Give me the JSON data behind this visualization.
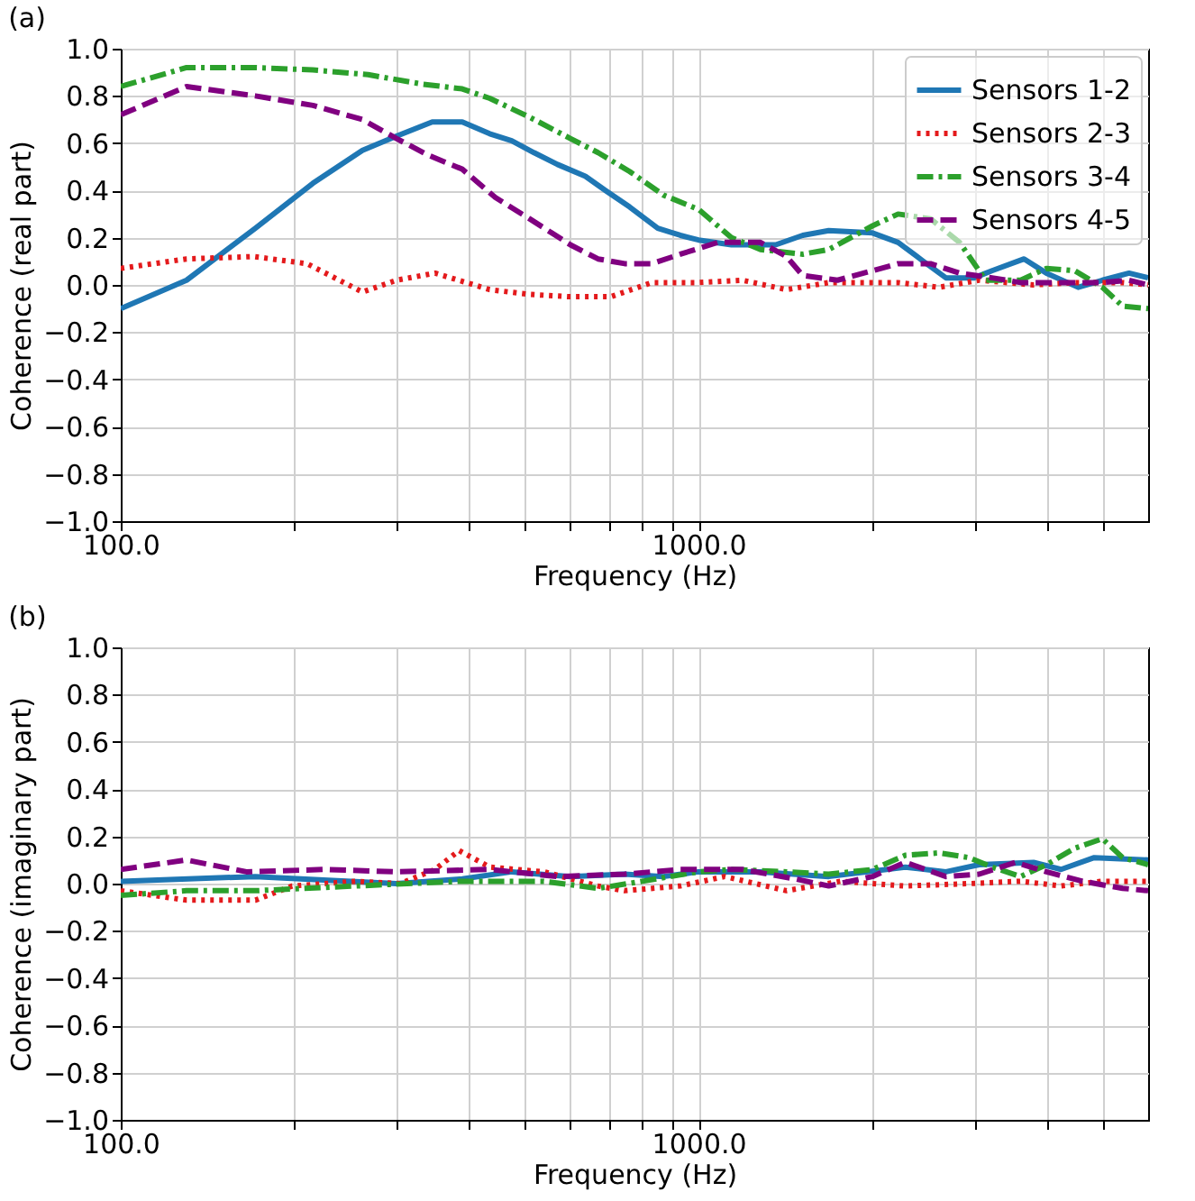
{
  "chart_data": [
    {
      "type": "line",
      "title": "(a)",
      "xlabel": "Frequency (Hz)",
      "ylabel": "Coherence (real part)",
      "log": "x",
      "grid": true,
      "legend": "top right",
      "xlim": [
        100,
        6000
      ],
      "ylim": [
        -1,
        1
      ],
      "xticks": [
        {
          "value": 100,
          "label": "100.0"
        },
        {
          "value": 200,
          "label": null
        },
        {
          "value": 300,
          "label": null
        },
        {
          "value": 400,
          "label": null
        },
        {
          "value": 500,
          "label": null
        },
        {
          "value": 600,
          "label": null
        },
        {
          "value": 700,
          "label": null
        },
        {
          "value": 800,
          "label": null
        },
        {
          "value": 900,
          "label": null
        },
        {
          "value": 1000,
          "label": "1000.0"
        },
        {
          "value": 2000,
          "label": null
        },
        {
          "value": 3000,
          "label": null
        },
        {
          "value": 4000,
          "label": null
        },
        {
          "value": 5000,
          "label": null
        }
      ],
      "yticks": [
        {
          "value": -1,
          "label": "−1.0"
        },
        {
          "value": -0.8,
          "label": "−0.8"
        },
        {
          "value": -0.6,
          "label": "−0.6"
        },
        {
          "value": -0.4,
          "label": "−0.4"
        },
        {
          "value": -0.2,
          "label": "−0.2"
        },
        {
          "value": 0,
          "label": "0.0"
        },
        {
          "value": 0.2,
          "label": "0.2"
        },
        {
          "value": 0.4,
          "label": "0.4"
        },
        {
          "value": 0.6,
          "label": "0.6"
        },
        {
          "value": 0.8,
          "label": "0.8"
        },
        {
          "value": 1,
          "label": "1.0"
        }
      ],
      "series": [
        {
          "name": "Sensors 1-2",
          "color": "#1f77b4",
          "line_style": "solid",
          "x": [
            100,
            130,
            171,
            215,
            262,
            300,
            346,
            390,
            435,
            475,
            519,
            570,
            637,
            690,
            760,
            850,
            930,
            1000,
            1140,
            1360,
            1515,
            1680,
            2000,
            2215,
            2450,
            2680,
            3000,
            3220,
            3660,
            4000,
            4540,
            5000,
            5560,
            6000
          ],
          "values": [
            -0.1,
            0.02,
            0.24,
            0.43,
            0.57,
            0.63,
            0.69,
            0.69,
            0.64,
            0.61,
            0.56,
            0.51,
            0.46,
            0.4,
            0.33,
            0.24,
            0.21,
            0.19,
            0.17,
            0.17,
            0.21,
            0.23,
            0.22,
            0.18,
            0.1,
            0.03,
            0.03,
            0.06,
            0.11,
            0.05,
            -0.01,
            0.02,
            0.05,
            0.03
          ]
        },
        {
          "name": "Sensors 2-3",
          "color": "#e41a1c",
          "line_style": "dotted",
          "x": [
            100,
            130,
            170,
            210,
            262,
            300,
            350,
            435,
            510,
            600,
            705,
            830,
            1000,
            1190,
            1420,
            1680,
            2215,
            2610,
            3060,
            3800,
            4480,
            5420,
            6000
          ],
          "values": [
            0.07,
            0.11,
            0.12,
            0.09,
            -0.03,
            0.02,
            0.05,
            -0.02,
            -0.04,
            -0.05,
            -0.05,
            0.01,
            0.01,
            0.02,
            -0.02,
            0.01,
            0.01,
            -0.01,
            0.02,
            0,
            0.01,
            0.01,
            0
          ]
        },
        {
          "name": "Sensors 3-4",
          "color": "#2ca02c",
          "line_style": "dashdot",
          "x": [
            100,
            130,
            171,
            215,
            268,
            333,
            390,
            435,
            510,
            600,
            670,
            760,
            870,
            1000,
            1140,
            1280,
            1515,
            1680,
            2000,
            2215,
            2520,
            2830,
            3140,
            3610,
            4000,
            4480,
            5000,
            5420,
            6000
          ],
          "values": [
            0.84,
            0.92,
            0.92,
            0.91,
            0.89,
            0.85,
            0.83,
            0.79,
            0.71,
            0.62,
            0.56,
            0.48,
            0.38,
            0.32,
            0.2,
            0.15,
            0.13,
            0.15,
            0.25,
            0.3,
            0.28,
            0.18,
            0.02,
            0.02,
            0.07,
            0.06,
            -0.01,
            -0.09,
            -0.1
          ]
        },
        {
          "name": "Sensors 4-5",
          "color": "#800080",
          "line_style": "dashed",
          "x": [
            100,
            130,
            171,
            215,
            262,
            300,
            340,
            390,
            445,
            510,
            600,
            670,
            745,
            830,
            930,
            1080,
            1280,
            1420,
            1515,
            1740,
            2000,
            2215,
            2520,
            2830,
            3220,
            3610,
            4240,
            5000,
            5560,
            6000
          ],
          "values": [
            0.72,
            0.84,
            0.8,
            0.76,
            0.7,
            0.62,
            0.55,
            0.49,
            0.37,
            0.28,
            0.17,
            0.11,
            0.09,
            0.09,
            0.13,
            0.18,
            0.18,
            0.12,
            0.04,
            0.02,
            0.06,
            0.09,
            0.09,
            0.05,
            0.03,
            0.01,
            0.01,
            0.01,
            0.02,
            0
          ]
        }
      ]
    },
    {
      "type": "line",
      "title": "(b)",
      "xlabel": "Frequency (Hz)",
      "ylabel": "Coherence (imaginary part)",
      "log": "x",
      "grid": true,
      "legend": "top right",
      "xlim": [
        100,
        6000
      ],
      "ylim": [
        -1,
        1
      ],
      "xticks": [
        {
          "value": 100,
          "label": "100.0"
        },
        {
          "value": 200,
          "label": null
        },
        {
          "value": 300,
          "label": null
        },
        {
          "value": 400,
          "label": null
        },
        {
          "value": 500,
          "label": null
        },
        {
          "value": 600,
          "label": null
        },
        {
          "value": 700,
          "label": null
        },
        {
          "value": 800,
          "label": null
        },
        {
          "value": 900,
          "label": null
        },
        {
          "value": 1000,
          "label": "1000.0"
        },
        {
          "value": 2000,
          "label": null
        },
        {
          "value": 3000,
          "label": null
        },
        {
          "value": 4000,
          "label": null
        },
        {
          "value": 5000,
          "label": null
        }
      ],
      "yticks": [
        {
          "value": -1,
          "label": "−1.0"
        },
        {
          "value": -0.8,
          "label": "−0.8"
        },
        {
          "value": -0.6,
          "label": "−0.6"
        },
        {
          "value": -0.4,
          "label": "−0.4"
        },
        {
          "value": -0.2,
          "label": "−0.2"
        },
        {
          "value": 0,
          "label": "0.0"
        },
        {
          "value": 0.2,
          "label": "0.2"
        },
        {
          "value": 0.4,
          "label": "0.4"
        },
        {
          "value": 0.6,
          "label": "0.6"
        },
        {
          "value": 0.8,
          "label": "0.8"
        },
        {
          "value": 1,
          "label": "1.0"
        }
      ],
      "series": [
        {
          "name": "Sensors 1-2",
          "color": "#1f77b4",
          "line_style": "solid",
          "x": [
            100,
            171,
            300,
            390,
            475,
            600,
            745,
            870,
            1000,
            1280,
            1680,
            2280,
            2680,
            3060,
            3800,
            4240,
            4840,
            6000
          ],
          "values": [
            0.01,
            0.03,
            0,
            0.02,
            0.05,
            0.03,
            0.04,
            0.03,
            0.05,
            0.05,
            0.03,
            0.07,
            0.05,
            0.08,
            0.09,
            0.06,
            0.11,
            0.1
          ]
        },
        {
          "name": "Sensors 2-3",
          "color": "#e41a1c",
          "line_style": "dotted",
          "x": [
            100,
            130,
            171,
            198,
            255,
            305,
            350,
            385,
            435,
            540,
            670,
            745,
            930,
            1110,
            1420,
            1760,
            2280,
            2940,
            3610,
            4240,
            5000,
            6000
          ],
          "values": [
            -0.03,
            -0.07,
            -0.07,
            -0.01,
            0.01,
            0,
            0.06,
            0.14,
            0.07,
            0.05,
            -0.01,
            -0.03,
            -0.01,
            0.03,
            -0.03,
            0.01,
            -0.01,
            0,
            0.01,
            -0.01,
            0.01,
            0.01
          ]
        },
        {
          "name": "Sensors 3-4",
          "color": "#2ca02c",
          "line_style": "dashdot",
          "x": [
            100,
            130,
            171,
            255,
            390,
            540,
            670,
            800,
            1000,
            1140,
            1420,
            1680,
            2000,
            2280,
            2610,
            2940,
            3220,
            3610,
            4000,
            4480,
            5000,
            5420,
            6000
          ],
          "values": [
            -0.05,
            -0.03,
            -0.03,
            -0.01,
            0.01,
            0.01,
            -0.02,
            0.01,
            0.05,
            0.06,
            0.05,
            0.04,
            0.06,
            0.12,
            0.13,
            0.11,
            0.07,
            0.03,
            0.08,
            0.15,
            0.19,
            0.11,
            0.08
          ]
        },
        {
          "name": "Sensors 4-5",
          "color": "#800080",
          "line_style": "dashed",
          "x": [
            100,
            130,
            165,
            225,
            300,
            435,
            570,
            745,
            930,
            1190,
            1470,
            1680,
            2000,
            2280,
            2680,
            3060,
            3540,
            4000,
            4620,
            5420,
            6000
          ],
          "values": [
            0.06,
            0.1,
            0.05,
            0.06,
            0.05,
            0.06,
            0.03,
            0.04,
            0.06,
            0.06,
            0.02,
            -0.01,
            0.03,
            0.09,
            0.03,
            0.04,
            0.09,
            0.05,
            0.01,
            -0.02,
            -0.03
          ]
        }
      ]
    }
  ]
}
